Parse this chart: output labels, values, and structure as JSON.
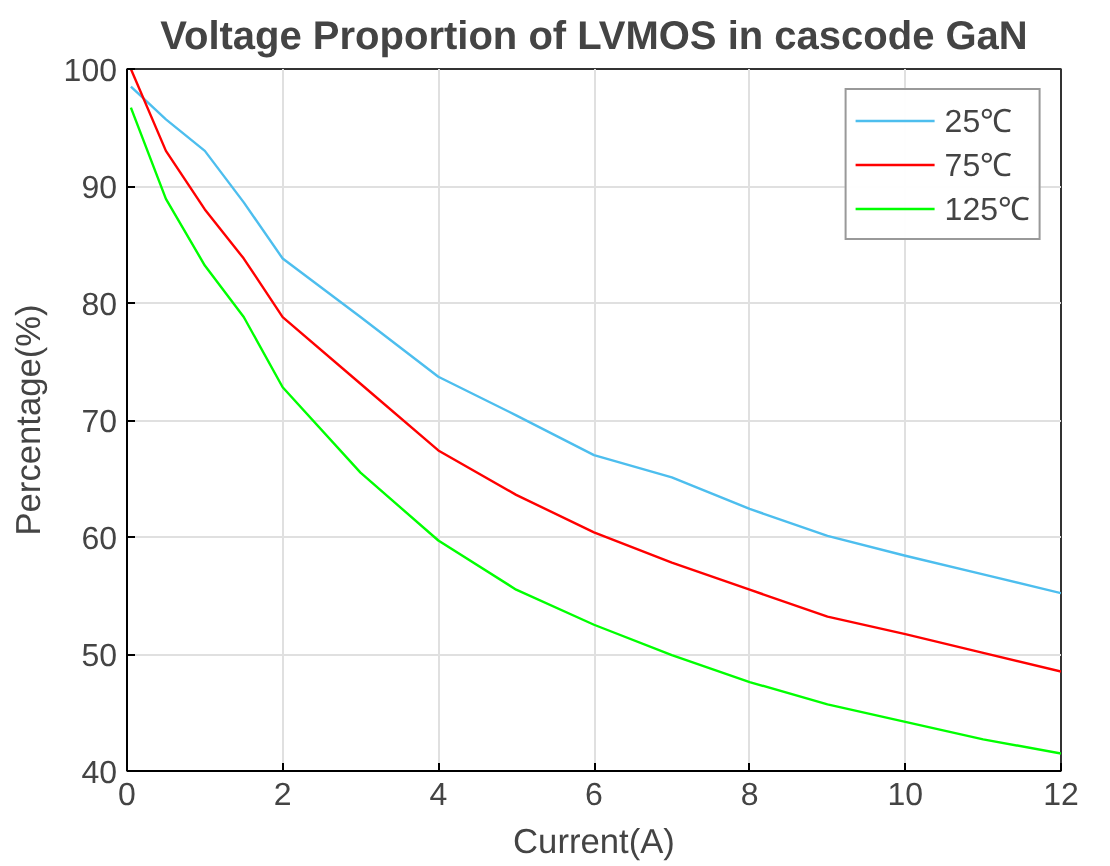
{
  "chart_data": {
    "type": "line",
    "title": "Voltage Proportion of LVMOS in cascode GaN",
    "xlabel": "Current(A)",
    "ylabel": "Percentage(%)",
    "x": [
      0.05,
      0.5,
      1,
      1.5,
      2,
      3,
      4,
      5,
      6,
      7,
      8,
      9,
      10,
      11,
      12
    ],
    "series": [
      {
        "name": "25℃",
        "color": "#4dbeee",
        "values": [
          98.5,
          95.7,
          93.0,
          88.6,
          83.8,
          78.8,
          73.7,
          70.4,
          67.0,
          65.1,
          62.4,
          60.1,
          58.4,
          56.8,
          55.2
        ]
      },
      {
        "name": "75℃",
        "color": "#ff0000",
        "values": [
          100,
          93.0,
          88.0,
          83.8,
          78.8,
          73.1,
          67.4,
          63.6,
          60.4,
          57.8,
          55.5,
          53.2,
          51.7,
          50.1,
          48.5
        ]
      },
      {
        "name": "125℃",
        "color": "#00ff00",
        "values": [
          96.7,
          88.9,
          83.2,
          78.8,
          72.8,
          65.5,
          59.7,
          55.5,
          52.5,
          49.9,
          47.6,
          45.7,
          44.2,
          42.7,
          41.5
        ]
      }
    ],
    "xlim": [
      0,
      12
    ],
    "ylim": [
      40,
      100
    ],
    "xticks": [
      0,
      2,
      4,
      6,
      8,
      10,
      12
    ],
    "yticks": [
      40,
      50,
      60,
      70,
      80,
      90,
      100
    ],
    "grid": true,
    "legend": "top right"
  }
}
